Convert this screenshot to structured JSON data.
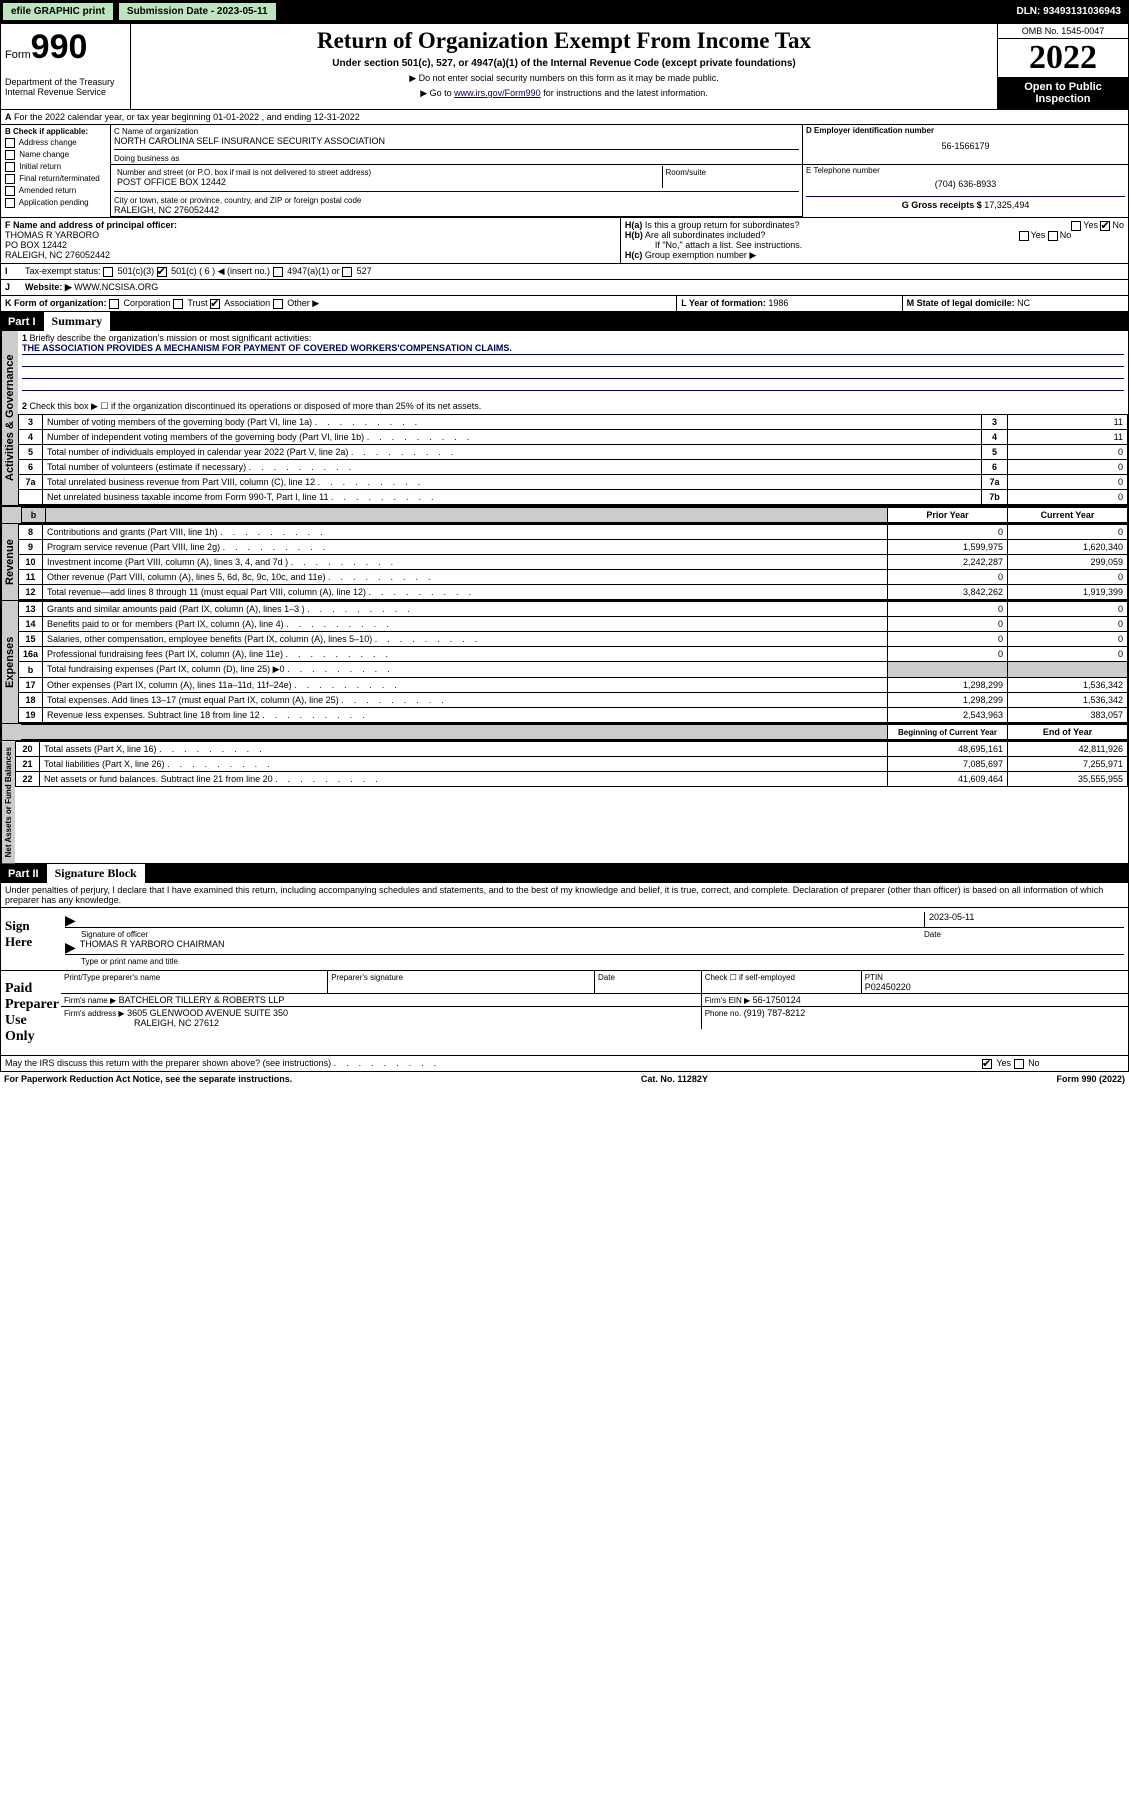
{
  "topbar": {
    "efile": "efile GRAPHIC print",
    "sub_label": "Submission Date - 2023-05-11",
    "dln": "DLN: 93493131036943"
  },
  "header": {
    "form_word": "Form",
    "form_num": "990",
    "title": "Return of Organization Exempt From Income Tax",
    "subtitle": "Under section 501(c), 527, or 4947(a)(1) of the Internal Revenue Code (except private foundations)",
    "note1": "▶ Do not enter social security numbers on this form as it may be made public.",
    "note2_pre": "▶ Go to ",
    "note2_link": "www.irs.gov/Form990",
    "note2_post": " for instructions and the latest information.",
    "dept": "Department of the Treasury Internal Revenue Service",
    "omb": "OMB No. 1545-0047",
    "year": "2022",
    "open": "Open to Public Inspection"
  },
  "A": {
    "text": "For the 2022 calendar year, or tax year beginning 01-01-2022   , and ending 12-31-2022"
  },
  "B": {
    "hdr": "B Check if applicable:",
    "items": [
      "Address change",
      "Name change",
      "Initial return",
      "Final return/terminated",
      "Amended return",
      "Application pending"
    ]
  },
  "C": {
    "name_lbl": "C Name of organization",
    "name": "NORTH CAROLINA SELF INSURANCE SECURITY ASSOCIATION",
    "dba_lbl": "Doing business as",
    "dba": "",
    "street_lbl": "Number and street (or P.O. box if mail is not delivered to street address)",
    "room_lbl": "Room/suite",
    "street": "POST OFFICE BOX 12442",
    "city_lbl": "City or town, state or province, country, and ZIP or foreign postal code",
    "city": "RALEIGH, NC  276052442"
  },
  "D": {
    "lbl": "D Employer identification number",
    "val": "56-1566179"
  },
  "E": {
    "lbl": "E Telephone number",
    "val": "(704) 636-8933"
  },
  "G": {
    "lbl": "G Gross receipts $",
    "val": "17,325,494"
  },
  "F": {
    "lbl": "F Name and address of principal officer:",
    "name": "THOMAS R YARBORO",
    "addr1": "PO BOX 12442",
    "addr2": "RALEIGH, NC  276052442"
  },
  "H": {
    "a": "Is this a group return for subordinates?",
    "b": "Are all subordinates included?",
    "note": "If \"No,\" attach a list. See instructions.",
    "c": "Group exemption number ▶",
    "yes": "Yes",
    "no": "No"
  },
  "I": {
    "lbl": "Tax-exempt status:",
    "opts": [
      "501(c)(3)",
      "501(c) ( 6 ) ◀ (insert no.)",
      "4947(a)(1) or",
      "527"
    ]
  },
  "J": {
    "lbl": "Website: ▶",
    "val": "WWW.NCSISA.ORG"
  },
  "K": {
    "lbl": "K Form of organization:",
    "opts": [
      "Corporation",
      "Trust",
      "Association",
      "Other ▶"
    ]
  },
  "L": {
    "lbl": "L Year of formation:",
    "val": "1986"
  },
  "M": {
    "lbl": "M State of legal domicile:",
    "val": "NC"
  },
  "parts": {
    "p1": "Part I",
    "p1t": "Summary",
    "p2": "Part II",
    "p2t": "Signature Block"
  },
  "summary": {
    "q1": "Briefly describe the organization's mission or most significant activities:",
    "mission": "THE ASSOCIATION PROVIDES A MECHANISM FOR PAYMENT OF COVERED WORKERS'COMPENSATION CLAIMS.",
    "q2": "Check this box ▶ ☐  if the organization discontinued its operations or disposed of more than 25% of its net assets.",
    "rows_gov": [
      {
        "n": "3",
        "t": "Number of voting members of the governing body (Part VI, line 1a)",
        "k": "3",
        "v": "11"
      },
      {
        "n": "4",
        "t": "Number of independent voting members of the governing body (Part VI, line 1b)",
        "k": "4",
        "v": "11"
      },
      {
        "n": "5",
        "t": "Total number of individuals employed in calendar year 2022 (Part V, line 2a)",
        "k": "5",
        "v": "0"
      },
      {
        "n": "6",
        "t": "Total number of volunteers (estimate if necessary)",
        "k": "6",
        "v": "0"
      },
      {
        "n": "7a",
        "t": "Total unrelated business revenue from Part VIII, column (C), line 12",
        "k": "7a",
        "v": "0"
      },
      {
        "n": "",
        "t": "Net unrelated business taxable income from Form 990-T, Part I, line 11",
        "k": "7b",
        "v": "0"
      }
    ],
    "col_prior": "Prior Year",
    "col_curr": "Current Year",
    "rows_rev": [
      {
        "n": "8",
        "t": "Contributions and grants (Part VIII, line 1h)",
        "p": "0",
        "c": "0"
      },
      {
        "n": "9",
        "t": "Program service revenue (Part VIII, line 2g)",
        "p": "1,599,975",
        "c": "1,620,340"
      },
      {
        "n": "10",
        "t": "Investment income (Part VIII, column (A), lines 3, 4, and 7d )",
        "p": "2,242,287",
        "c": "299,059"
      },
      {
        "n": "11",
        "t": "Other revenue (Part VIII, column (A), lines 5, 6d, 8c, 9c, 10c, and 11e)",
        "p": "0",
        "c": "0"
      },
      {
        "n": "12",
        "t": "Total revenue—add lines 8 through 11 (must equal Part VIII, column (A), line 12)",
        "p": "3,842,262",
        "c": "1,919,399"
      }
    ],
    "rows_exp": [
      {
        "n": "13",
        "t": "Grants and similar amounts paid (Part IX, column (A), lines 1–3 )",
        "p": "0",
        "c": "0"
      },
      {
        "n": "14",
        "t": "Benefits paid to or for members (Part IX, column (A), line 4)",
        "p": "0",
        "c": "0"
      },
      {
        "n": "15",
        "t": "Salaries, other compensation, employee benefits (Part IX, column (A), lines 5–10)",
        "p": "0",
        "c": "0"
      },
      {
        "n": "16a",
        "t": "Professional fundraising fees (Part IX, column (A), line 11e)",
        "p": "0",
        "c": "0"
      },
      {
        "n": "b",
        "t": "Total fundraising expenses (Part IX, column (D), line 25) ▶0",
        "p": "",
        "c": "",
        "grey": true
      },
      {
        "n": "17",
        "t": "Other expenses (Part IX, column (A), lines 11a–11d, 11f–24e)",
        "p": "1,298,299",
        "c": "1,536,342"
      },
      {
        "n": "18",
        "t": "Total expenses. Add lines 13–17 (must equal Part IX, column (A), line 25)",
        "p": "1,298,299",
        "c": "1,536,342"
      },
      {
        "n": "19",
        "t": "Revenue less expenses. Subtract line 18 from line 12",
        "p": "2,543,963",
        "c": "383,057"
      }
    ],
    "col_begin": "Beginning of Current Year",
    "col_end": "End of Year",
    "rows_bal": [
      {
        "n": "20",
        "t": "Total assets (Part X, line 16)",
        "p": "48,695,161",
        "c": "42,811,926"
      },
      {
        "n": "21",
        "t": "Total liabilities (Part X, line 26)",
        "p": "7,085,697",
        "c": "7,255,971"
      },
      {
        "n": "22",
        "t": "Net assets or fund balances. Subtract line 21 from line 20",
        "p": "41,609,464",
        "c": "35,555,955"
      }
    ],
    "tabs": {
      "gov": "Activities & Governance",
      "rev": "Revenue",
      "exp": "Expenses",
      "bal": "Net Assets or Fund Balances"
    }
  },
  "sig": {
    "decl": "Under penalties of perjury, I declare that I have examined this return, including accompanying schedules and statements, and to the best of my knowledge and belief, it is true, correct, and complete. Declaration of preparer (other than officer) is based on all information of which preparer has any knowledge.",
    "sign_here": "Sign Here",
    "sig_officer": "Signature of officer",
    "date_lbl": "Date",
    "date": "2023-05-11",
    "name_title": "THOMAS R YARBORO  CHAIRMAN",
    "type_lbl": "Type or print name and title",
    "paid": "Paid Preparer Use Only",
    "prep_name_lbl": "Print/Type preparer's name",
    "prep_sig_lbl": "Preparer's signature",
    "check_lbl": "Check ☐ if self-employed",
    "ptin_lbl": "PTIN",
    "ptin": "P02450220",
    "firm_name_lbl": "Firm's name    ▶",
    "firm_name": "BATCHELOR TILLERY & ROBERTS LLP",
    "firm_ein_lbl": "Firm's EIN ▶",
    "firm_ein": "56-1750124",
    "firm_addr_lbl": "Firm's address ▶",
    "firm_addr1": "3605 GLENWOOD AVENUE SUITE 350",
    "firm_addr2": "RALEIGH, NC  27612",
    "phone_lbl": "Phone no.",
    "phone": "(919) 787-8212",
    "discuss": "May the IRS discuss this return with the preparer shown above? (see instructions)"
  },
  "footer": {
    "left": "For Paperwork Reduction Act Notice, see the separate instructions.",
    "mid": "Cat. No. 11282Y",
    "right": "Form 990 (2022)"
  }
}
